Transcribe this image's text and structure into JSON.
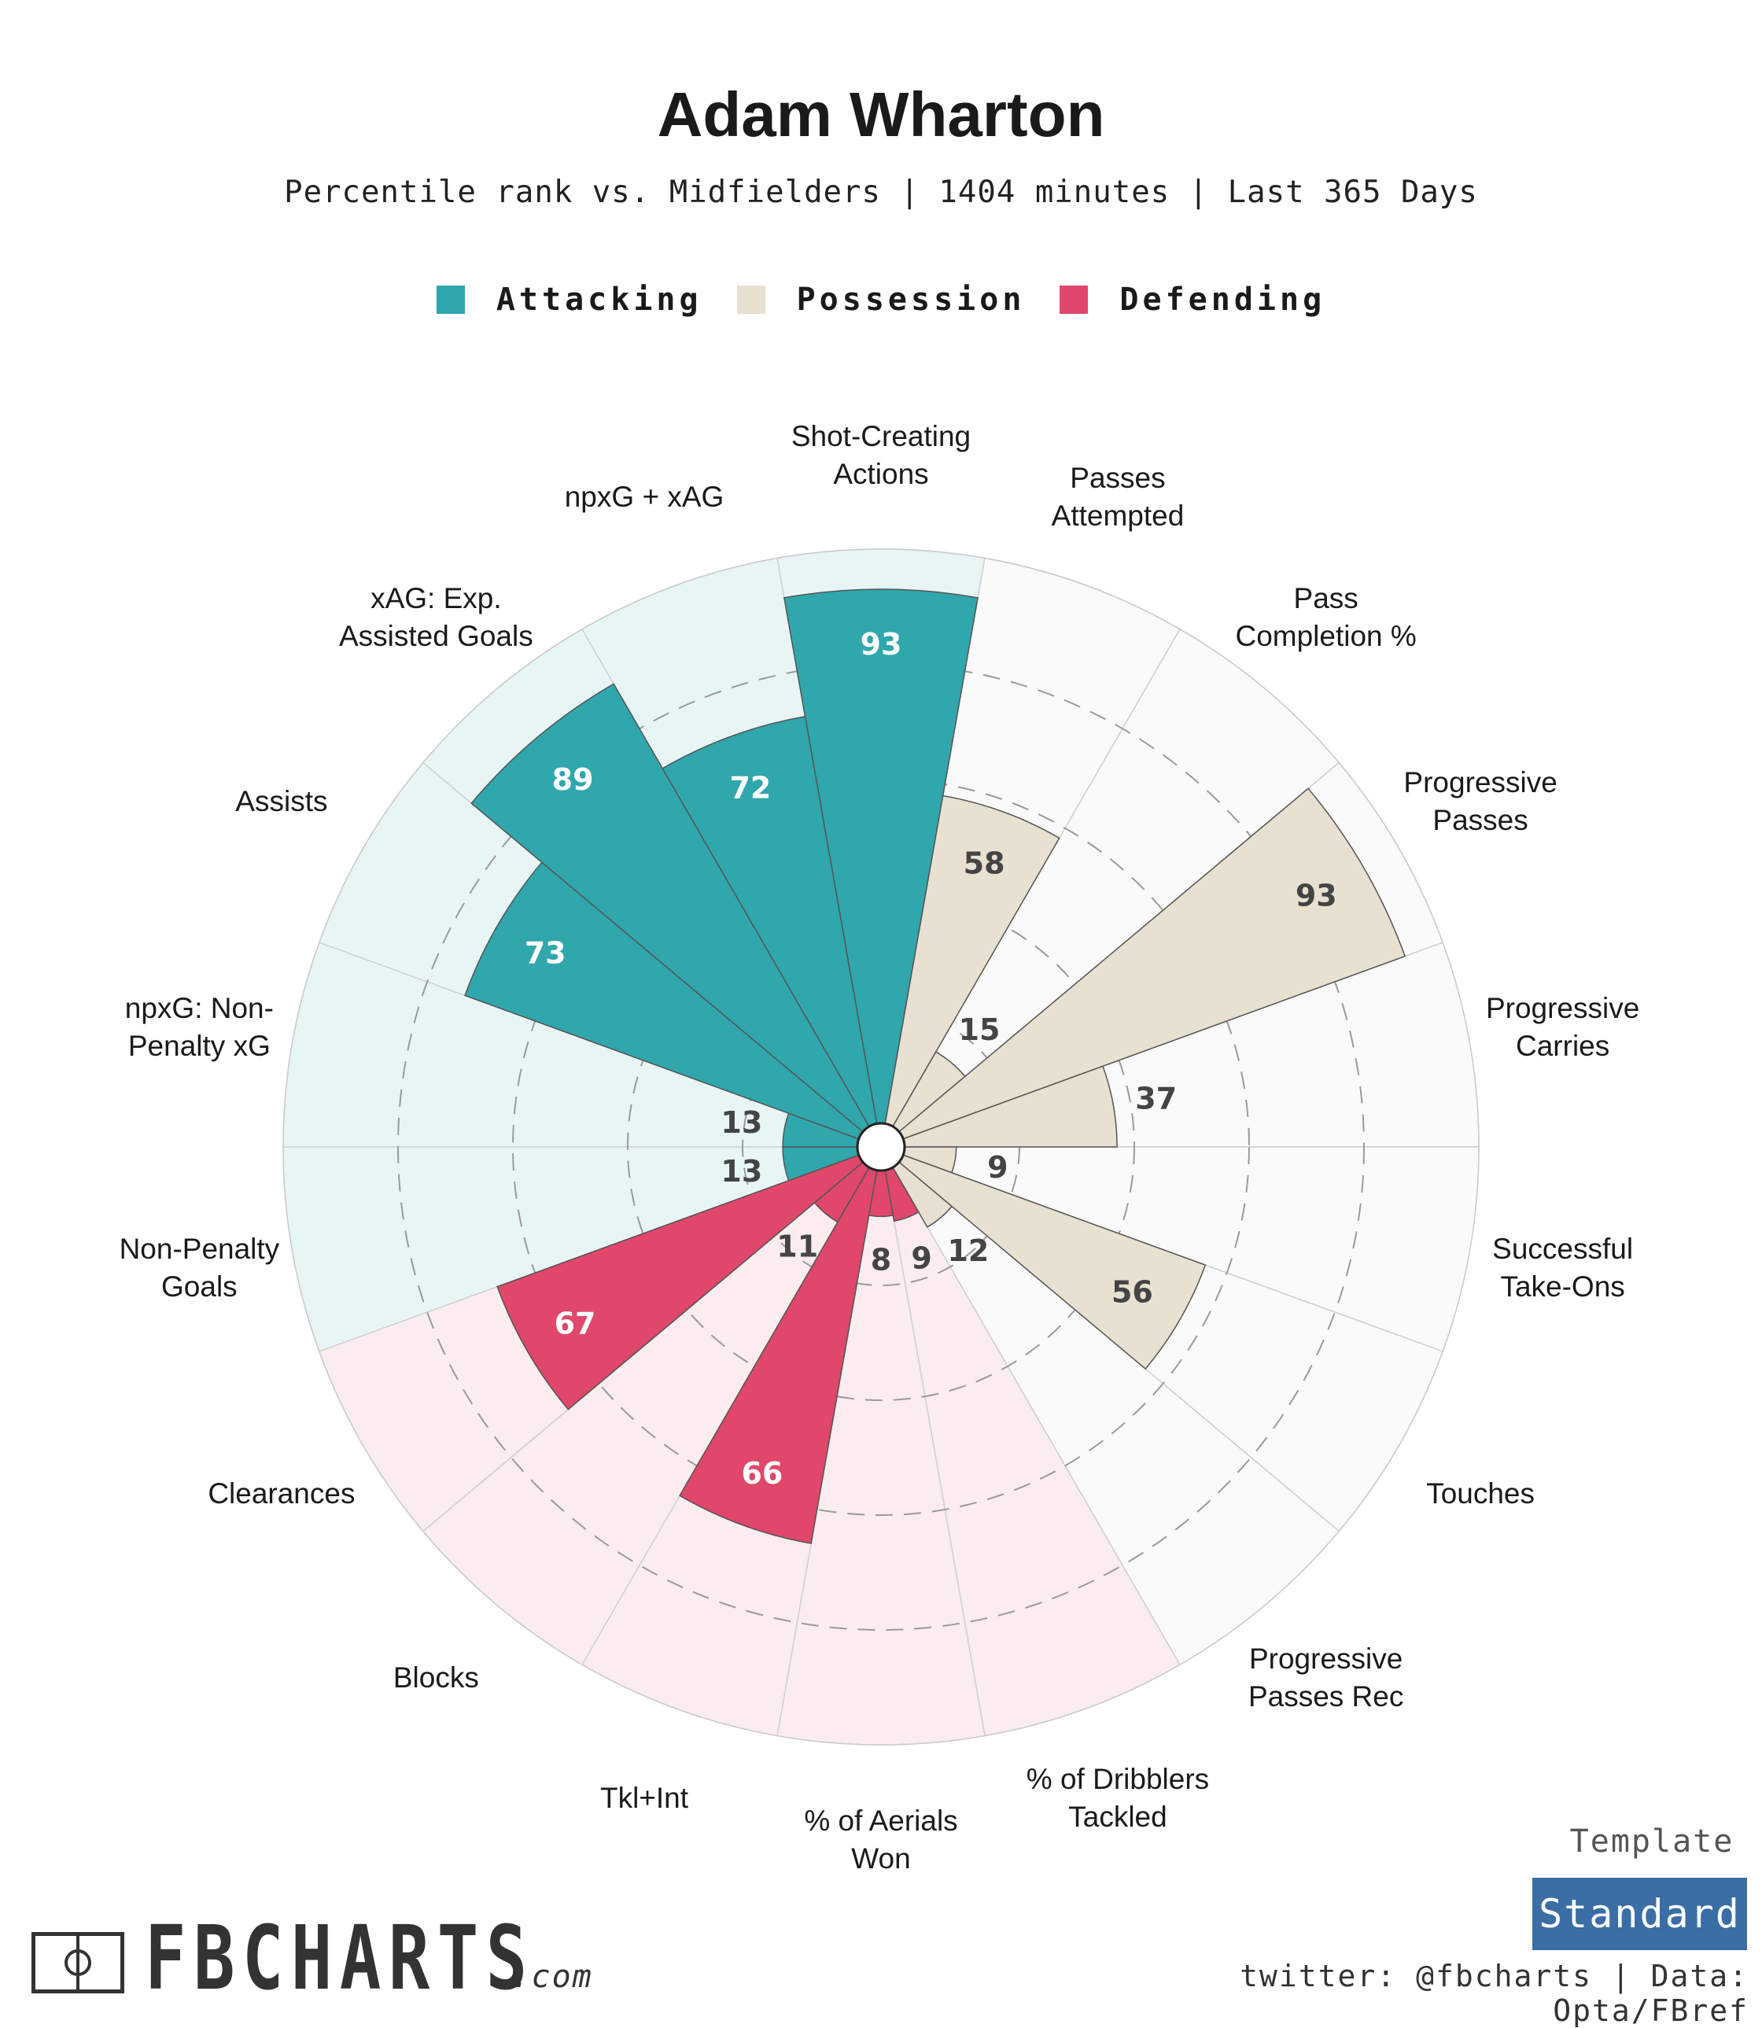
{
  "title": "Adam Wharton",
  "subtitle": "Percentile rank vs. Midfielders | 1404 minutes | Last 365 Days",
  "legend": {
    "attacking": "Attacking",
    "possession": "Possession",
    "defending": "Defending"
  },
  "colors": {
    "attacking": "#2fa7ad",
    "attacking_bg": "#e8f5f5",
    "possession": "#e8e1d1",
    "possession_bg": "#fafafa",
    "defending": "#e0476a",
    "defending_bg": "#fbecf0",
    "attacking_text": "#ffffff",
    "possession_text": "#444444",
    "defending_text": "#ffffff"
  },
  "chart_data": {
    "type": "polar-bar",
    "rmax": 100,
    "grid_rings": [
      20,
      40,
      60,
      80
    ],
    "categories": [
      {
        "label": "Shot-Creating Actions",
        "group": "attacking",
        "value": 93
      },
      {
        "label": "Passes Attempted",
        "group": "possession",
        "value": 58
      },
      {
        "label": "Pass Completion %",
        "group": "possession",
        "value": 15
      },
      {
        "label": "Progressive Passes",
        "group": "possession",
        "value": 93
      },
      {
        "label": "Progressive Carries",
        "group": "possession",
        "value": 37
      },
      {
        "label": "Successful Take-Ons",
        "group": "possession",
        "value": 9
      },
      {
        "label": "Touches",
        "group": "possession",
        "value": 56
      },
      {
        "label": "Progressive Passes Rec",
        "group": "possession",
        "value": 12
      },
      {
        "label": "% of Dribblers Tackled",
        "group": "defending",
        "value": 9
      },
      {
        "label": "% of Aerials Won",
        "group": "defending",
        "value": 8
      },
      {
        "label": "Tkl+Int",
        "group": "defending",
        "value": 66
      },
      {
        "label": "Blocks",
        "group": "defending",
        "value": 11
      },
      {
        "label": "Clearances",
        "group": "defending",
        "value": 67
      },
      {
        "label": "Non-Penalty Goals",
        "group": "attacking",
        "value": 13
      },
      {
        "label": "npxG: Non-Penalty xG",
        "group": "attacking",
        "value": 13
      },
      {
        "label": "Assists",
        "group": "attacking",
        "value": 73
      },
      {
        "label": "xAG: Exp. Assisted Goals",
        "group": "attacking",
        "value": 89
      },
      {
        "label": "npxG + xAG",
        "group": "attacking",
        "value": 72
      }
    ]
  },
  "template": {
    "label": "Template",
    "value": "Standard"
  },
  "footer": {
    "brand": "FBCHARTS",
    "brand_suffix": ".com",
    "credits": "twitter: @fbcharts | Data: Opta/FBref"
  }
}
